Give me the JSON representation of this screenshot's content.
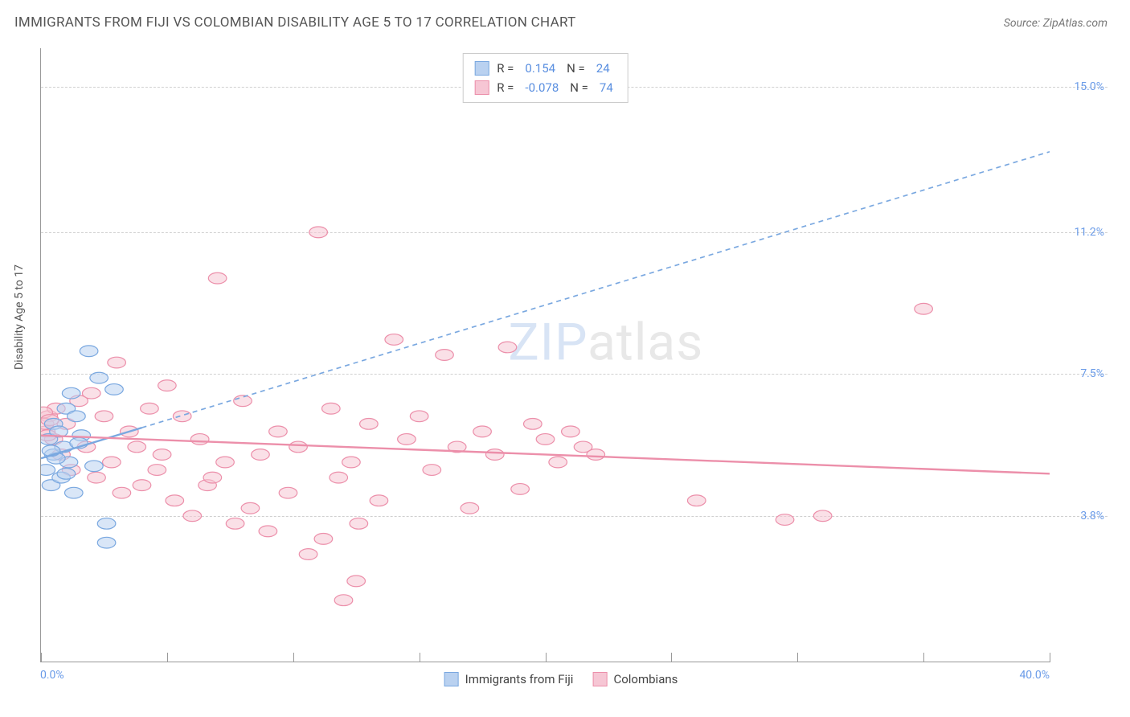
{
  "title": "IMMIGRANTS FROM FIJI VS COLOMBIAN DISABILITY AGE 5 TO 17 CORRELATION CHART",
  "source_label": "Source: ZipAtlas.com",
  "watermark": {
    "part1": "ZIP",
    "part2": "atlas"
  },
  "y_axis_title": "Disability Age 5 to 17",
  "chart": {
    "type": "scatter",
    "xlim": [
      0,
      40
    ],
    "ylim": [
      0,
      16
    ],
    "x_ticks": [
      0,
      5,
      10,
      15,
      20,
      25,
      30,
      35,
      40
    ],
    "x_tick_labels": {
      "min": "0.0%",
      "max": "40.0%"
    },
    "y_gridlines": [
      3.8,
      7.5,
      11.2,
      15.0
    ],
    "y_tick_labels": [
      "3.8%",
      "7.5%",
      "11.2%",
      "15.0%"
    ],
    "grid_color": "#d0d0d0",
    "axis_color": "#999999",
    "background_color": "#ffffff",
    "label_color": "#6a9be8",
    "label_fontsize": 14,
    "marker_radius": 9,
    "marker_stroke_width": 1.2,
    "marker_fill_opacity": 0.25,
    "series": [
      {
        "name": "Immigrants from Fiji",
        "color_fill": "#b9d1f0",
        "color_stroke": "#7aa8e0",
        "R": "0.154",
        "N": "24",
        "trend": {
          "x1": 0,
          "y1": 5.3,
          "x2": 4.0,
          "y2": 6.1,
          "solid_end_x": 4.0,
          "dash_end_x": 40,
          "dash_end_y": 13.3,
          "width": 2.4,
          "dash": "6,5"
        },
        "points": [
          [
            0.2,
            5.0
          ],
          [
            0.3,
            5.8
          ],
          [
            0.4,
            4.6
          ],
          [
            0.5,
            6.2
          ],
          [
            0.5,
            5.4
          ],
          [
            0.7,
            6.0
          ],
          [
            0.8,
            4.8
          ],
          [
            0.9,
            5.6
          ],
          [
            1.0,
            6.6
          ],
          [
            1.1,
            5.2
          ],
          [
            1.2,
            7.0
          ],
          [
            1.3,
            4.4
          ],
          [
            1.4,
            6.4
          ],
          [
            1.6,
            5.9
          ],
          [
            1.9,
            8.1
          ],
          [
            2.1,
            5.1
          ],
          [
            2.3,
            7.4
          ],
          [
            2.6,
            3.1
          ],
          [
            2.6,
            3.6
          ],
          [
            2.9,
            7.1
          ],
          [
            0.6,
            5.3
          ],
          [
            1.0,
            4.9
          ],
          [
            1.5,
            5.7
          ],
          [
            0.4,
            5.5
          ]
        ]
      },
      {
        "name": "Colombians",
        "color_fill": "#f6c6d4",
        "color_stroke": "#ec8faa",
        "R": "-0.078",
        "N": "74",
        "trend": {
          "x1": 0,
          "y1": 5.9,
          "x2": 40,
          "y2": 4.9,
          "solid_end_x": 40,
          "width": 2.4
        },
        "points": [
          [
            0.2,
            6.0
          ],
          [
            0.3,
            6.4
          ],
          [
            0.5,
            5.8
          ],
          [
            0.6,
            6.6
          ],
          [
            0.8,
            5.4
          ],
          [
            1.0,
            6.2
          ],
          [
            1.2,
            5.0
          ],
          [
            1.5,
            6.8
          ],
          [
            1.8,
            5.6
          ],
          [
            2.0,
            7.0
          ],
          [
            2.2,
            4.8
          ],
          [
            2.5,
            6.4
          ],
          [
            2.8,
            5.2
          ],
          [
            3.0,
            7.8
          ],
          [
            3.2,
            4.4
          ],
          [
            3.5,
            6.0
          ],
          [
            3.8,
            5.6
          ],
          [
            4.0,
            4.6
          ],
          [
            4.3,
            6.6
          ],
          [
            4.6,
            5.0
          ],
          [
            5.0,
            7.2
          ],
          [
            5.3,
            4.2
          ],
          [
            5.6,
            6.4
          ],
          [
            6.0,
            3.8
          ],
          [
            6.3,
            5.8
          ],
          [
            6.6,
            4.6
          ],
          [
            7.0,
            10.0
          ],
          [
            7.3,
            5.2
          ],
          [
            7.7,
            3.6
          ],
          [
            8.0,
            6.8
          ],
          [
            8.3,
            4.0
          ],
          [
            8.7,
            5.4
          ],
          [
            9.0,
            3.4
          ],
          [
            9.4,
            6.0
          ],
          [
            9.8,
            4.4
          ],
          [
            10.2,
            5.6
          ],
          [
            10.6,
            2.8
          ],
          [
            11.0,
            11.2
          ],
          [
            11.2,
            3.2
          ],
          [
            11.5,
            6.6
          ],
          [
            11.8,
            4.8
          ],
          [
            12.0,
            1.6
          ],
          [
            12.3,
            5.2
          ],
          [
            12.5,
            2.1
          ],
          [
            12.6,
            3.6
          ],
          [
            13.0,
            6.2
          ],
          [
            13.4,
            4.2
          ],
          [
            14.0,
            8.4
          ],
          [
            14.5,
            5.8
          ],
          [
            15.0,
            6.4
          ],
          [
            15.5,
            5.0
          ],
          [
            16.0,
            8.0
          ],
          [
            16.5,
            5.6
          ],
          [
            17.0,
            4.0
          ],
          [
            17.5,
            6.0
          ],
          [
            18.0,
            5.4
          ],
          [
            18.5,
            8.2
          ],
          [
            19.0,
            4.5
          ],
          [
            19.5,
            6.2
          ],
          [
            20.0,
            5.8
          ],
          [
            20.5,
            5.2
          ],
          [
            21.0,
            6.0
          ],
          [
            21.5,
            5.6
          ],
          [
            22.0,
            5.4
          ],
          [
            26.0,
            4.2
          ],
          [
            29.5,
            3.7
          ],
          [
            31.0,
            3.8
          ],
          [
            35.0,
            9.2
          ],
          [
            0.1,
            6.5
          ],
          [
            0.15,
            6.2
          ],
          [
            0.25,
            5.9
          ],
          [
            0.35,
            6.3
          ],
          [
            4.8,
            5.4
          ],
          [
            6.8,
            4.8
          ]
        ]
      }
    ]
  },
  "legend_top": {
    "r_label": "R =",
    "n_label": "N ="
  },
  "legend_bottom": {
    "items": [
      "Immigrants from Fiji",
      "Colombians"
    ]
  }
}
